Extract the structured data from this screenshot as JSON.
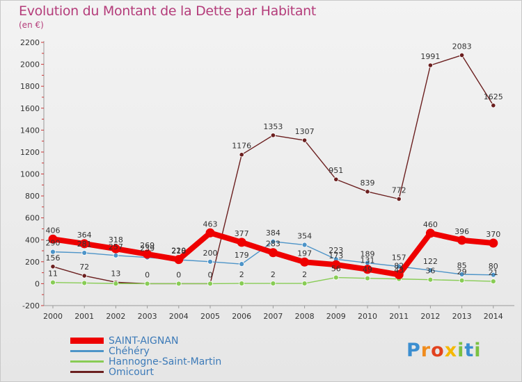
{
  "header": {
    "title": "Evolution du Montant de la Dette par Habitant",
    "subtitle": "(en €)"
  },
  "logo": {
    "text": "Proxiti"
  },
  "chart_data": {
    "type": "line",
    "title": "Evolution du Montant de la Dette par Habitant",
    "subtitle": "(en €)",
    "x": [
      "2000",
      "2001",
      "2002",
      "2003",
      "2004",
      "2005",
      "2006",
      "2007",
      "2008",
      "2009",
      "2010",
      "2011",
      "2012",
      "2013",
      "2014"
    ],
    "y_ticks": [
      "-200",
      "0",
      "200",
      "400",
      "600",
      "800",
      "1000",
      "1200",
      "1400",
      "1600",
      "1800",
      "2000",
      "2200"
    ],
    "ylim": [
      -200,
      2200
    ],
    "grid": false,
    "legend_position": "bottom-left",
    "series": [
      {
        "name": "SAINT-AIGNAN",
        "color": "#ee0000",
        "values": [
          406,
          364,
          318,
          269,
          220,
          463,
          377,
          283,
          197,
          173,
          131,
          82,
          460,
          396,
          370
        ],
        "labels": [
          "406",
          "364",
          "318",
          "269",
          "220",
          "463",
          "377",
          "283",
          "197",
          "173",
          "131",
          "82",
          "460",
          "396",
          "370"
        ]
      },
      {
        "name": "Chéhéry",
        "color": "#4d94c8",
        "values": [
          290,
          281,
          257,
          239,
          218,
          200,
          179,
          384,
          354,
          223,
          189,
          157,
          122,
          85,
          80
        ],
        "labels": [
          "290",
          "281",
          "257",
          "239",
          "218",
          "200",
          "179",
          "384",
          "354",
          "223",
          "189",
          "157",
          "122",
          "85",
          "80"
        ]
      },
      {
        "name": "Hannogne-Saint-Martin",
        "color": "#88cc55",
        "values": [
          11,
          6,
          1,
          0,
          0,
          0,
          2,
          2,
          2,
          56,
          49,
          43,
          36,
          29,
          21
        ],
        "labels": [
          "11",
          "",
          "",
          "",
          "",
          "",
          "2",
          "2",
          "2",
          "56",
          "49",
          "43",
          "36",
          "29",
          "21"
        ]
      },
      {
        "name": "Omicourt",
        "color": "#6b1f1f",
        "values": [
          156,
          72,
          13,
          0,
          0,
          0,
          1176,
          1353,
          1307,
          951,
          839,
          772,
          1991,
          2083,
          1625
        ],
        "labels": [
          "156",
          "72",
          "13",
          "0",
          "0",
          "0",
          "1176",
          "1353",
          "1307",
          "951",
          "839",
          "772",
          "1991",
          "2083",
          "1625"
        ]
      }
    ]
  }
}
